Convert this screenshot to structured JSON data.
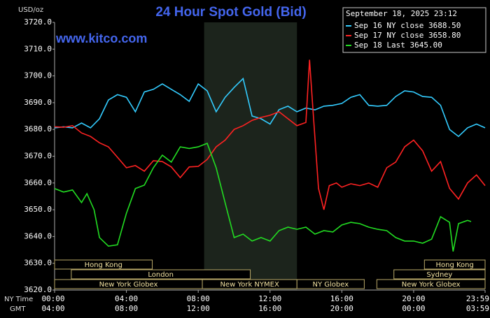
{
  "chart_data": {
    "type": "line",
    "title": "24 Hour Spot Gold (Bid)",
    "website": "www.kitco.com",
    "y_label": "USD/oz",
    "x_label": "NY Time",
    "x2_label": "GMT",
    "timestamp": "September 18, 2025 23:12",
    "xlim": [
      0,
      23.98
    ],
    "xticks": [
      {
        "value": 0,
        "label": "00:00"
      },
      {
        "value": 4,
        "label": "04:00"
      },
      {
        "value": 8,
        "label": "08:00"
      },
      {
        "value": 12,
        "label": "12:00"
      },
      {
        "value": 16,
        "label": "16:00"
      },
      {
        "value": 20,
        "label": "20:00"
      },
      {
        "value": 23.98,
        "label": "23:59"
      }
    ],
    "gmt_labels": [
      "04:00",
      "08:00",
      "12:00",
      "16:00",
      "20:00",
      "00:00",
      "03:59"
    ],
    "ylim": [
      3620,
      3720
    ],
    "yticks": [
      {
        "value": 3620,
        "label": "3620.0"
      },
      {
        "value": 3630,
        "label": "3630.0"
      },
      {
        "value": 3640,
        "label": "3640.0"
      },
      {
        "value": 3650,
        "label": "3650.0"
      },
      {
        "value": 3660,
        "label": "3660.0"
      },
      {
        "value": 3670,
        "label": "3670.0"
      },
      {
        "value": 3680,
        "label": "3680.0"
      },
      {
        "value": 3690,
        "label": "3690.0"
      },
      {
        "value": 3700,
        "label": "3700.0"
      },
      {
        "value": 3710,
        "label": "3710.0"
      },
      {
        "value": 3720,
        "label": "3720.0"
      }
    ],
    "shaded_span": [
      8.33,
      13.5
    ],
    "sessions": [
      {
        "label": "Hong Kong",
        "start": 0,
        "end": 5.44,
        "row": 1
      },
      {
        "label": "Hong Kong",
        "start": 20.6,
        "end": 23.98,
        "row": 1
      },
      {
        "label": "London",
        "start": 0.93,
        "end": 10.9,
        "row": 2
      },
      {
        "label": "Sydney",
        "start": 18.9,
        "end": 23.98,
        "row": 2
      },
      {
        "label": "New York Globex",
        "start": 0,
        "end": 8.23,
        "row": 3
      },
      {
        "label": "New York NYMEX",
        "start": 8.23,
        "end": 13.5,
        "row": 3
      },
      {
        "label": "NY Globex",
        "start": 13.5,
        "end": 17.25,
        "row": 3
      },
      {
        "label": "New York Globex",
        "start": 17.95,
        "end": 23.98,
        "row": 3
      }
    ],
    "series": [
      {
        "name": "Sep 16 NY close 3688.50",
        "color": "#33ccff",
        "x": [
          0,
          0.5,
          1,
          1.5,
          2,
          2.5,
          3,
          3.5,
          4,
          4.5,
          5,
          5.5,
          6,
          6.5,
          7,
          7.5,
          8,
          8.5,
          9,
          9.5,
          10,
          10.5,
          11,
          11.5,
          12,
          12.5,
          13,
          13.5,
          14,
          14.5,
          15,
          15.5,
          16,
          16.5,
          17,
          17.5,
          18,
          18.5,
          19,
          19.5,
          20,
          20.5,
          21,
          21.5,
          22,
          22.5,
          23,
          23.5,
          23.98
        ],
        "values": [
          3680.6,
          3681,
          3680.6,
          3682.4,
          3680.6,
          3684,
          3691,
          3693,
          3692,
          3686.6,
          3694,
          3695,
          3697,
          3695,
          3693,
          3690.5,
          3697,
          3694.4,
          3686.6,
          3692,
          3695.7,
          3699,
          3685,
          3684,
          3682,
          3687.4,
          3688.7,
          3686.6,
          3688,
          3687.3,
          3688.7,
          3689,
          3689.7,
          3692,
          3693,
          3689,
          3688.7,
          3689,
          3692.3,
          3694.4,
          3694,
          3692.3,
          3692,
          3689,
          3680,
          3677.4,
          3680.6,
          3682,
          3680.6
        ]
      },
      {
        "name": "Sep 17 NY close 3658.80",
        "color": "#ff2222",
        "x": [
          0,
          0.5,
          1,
          1.5,
          2,
          2.5,
          3,
          3.5,
          4,
          4.5,
          5,
          5.5,
          6,
          6.5,
          7,
          7.5,
          8,
          8.5,
          9,
          9.5,
          10,
          10.5,
          11,
          11.5,
          12,
          12.5,
          13,
          13.5,
          14,
          14.2,
          14.4,
          14.7,
          15,
          15.3,
          15.7,
          16,
          16.5,
          17,
          17.5,
          18,
          18.5,
          19,
          19.5,
          20,
          20.5,
          21,
          21.5,
          22,
          22.5,
          23,
          23.5,
          23.98
        ],
        "values": [
          3681,
          3680.8,
          3681.4,
          3678.7,
          3677.4,
          3675,
          3673.5,
          3669.6,
          3665.7,
          3666.5,
          3664.4,
          3668.3,
          3668,
          3666,
          3662,
          3666,
          3666.2,
          3668.8,
          3673.5,
          3676,
          3680,
          3681.4,
          3683.4,
          3684.5,
          3685.3,
          3686.6,
          3684,
          3681.4,
          3682.6,
          3706,
          3686.6,
          3658,
          3650,
          3659,
          3660,
          3658.4,
          3659.7,
          3659,
          3660,
          3658.4,
          3665.7,
          3667.8,
          3673.5,
          3676,
          3672,
          3664.4,
          3668,
          3658,
          3654,
          3660,
          3663,
          3659
        ]
      },
      {
        "name": "Sep 18 Last 3645.00",
        "color": "#22dd22",
        "x": [
          0,
          0.5,
          1,
          1.5,
          1.8,
          2.2,
          2.5,
          3,
          3.5,
          4,
          4.5,
          5,
          5.5,
          6,
          6.5,
          7,
          7.5,
          8,
          8.5,
          9,
          9.5,
          10,
          10.5,
          11,
          11.5,
          12,
          12.5,
          13,
          13.5,
          14,
          14.5,
          15,
          15.5,
          16,
          16.5,
          17,
          17.5,
          18,
          18.5,
          19,
          19.5,
          20,
          20.5,
          21,
          21.5,
          22,
          22.2,
          22.5,
          23,
          23.2
        ],
        "values": [
          3657.9,
          3656.6,
          3657.4,
          3652.7,
          3656,
          3650,
          3639.6,
          3636.4,
          3636.9,
          3648.7,
          3657.9,
          3659.2,
          3665.7,
          3670.4,
          3667.8,
          3673.5,
          3672.9,
          3673.5,
          3674.8,
          3665.7,
          3652.6,
          3639.6,
          3640.9,
          3638.3,
          3639.6,
          3638.3,
          3642.2,
          3643.5,
          3642.7,
          3643.5,
          3640.9,
          3642.2,
          3641.7,
          3644.3,
          3645.3,
          3644.8,
          3643.5,
          3642.7,
          3642.2,
          3639.6,
          3638.3,
          3638.3,
          3637.5,
          3639,
          3647.4,
          3645.3,
          3634.4,
          3644.8,
          3646,
          3645.6
        ]
      }
    ]
  }
}
